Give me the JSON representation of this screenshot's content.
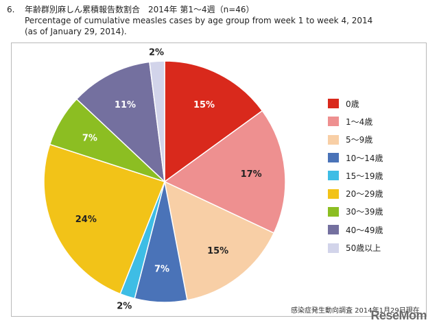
{
  "header": {
    "number": "6.",
    "title_jp": "年齢群別麻しん累積報告数割合　2014年 第1～4週（n=46）",
    "title_en": "Percentage of cumulative measles cases by age group from week 1 to week 4, 2014",
    "date_note": "(as of  January 29, 2014)."
  },
  "source": "感染症発生動向調査 2014年1月29日現在",
  "logo": "ReseMom",
  "chart_data": {
    "type": "pie",
    "title": "Percentage of cumulative measles cases by age group from week 1 to week 4, 2014",
    "n": 46,
    "legend_position": "right",
    "slices": [
      {
        "label": "0歳",
        "value": 15,
        "display": "15%",
        "color": "#d9291c"
      },
      {
        "label": "1～4歳",
        "value": 17,
        "display": "17%",
        "color": "#ee9090"
      },
      {
        "label": "5～9歳",
        "value": 15,
        "display": "15%",
        "color": "#f8cfa6"
      },
      {
        "label": "10～14歳",
        "value": 7,
        "display": "7%",
        "color": "#4a73b8"
      },
      {
        "label": "15～19歳",
        "value": 2,
        "display": "2%",
        "color": "#3ebde5"
      },
      {
        "label": "20～29歳",
        "value": 24,
        "display": "24%",
        "color": "#f2c318"
      },
      {
        "label": "30～39歳",
        "value": 7,
        "display": "7%",
        "color": "#8cbe22"
      },
      {
        "label": "40～49歳",
        "value": 11,
        "display": "11%",
        "color": "#74709f"
      },
      {
        "label": "50歳以上",
        "value": 2,
        "display": "2%",
        "color": "#d2d4ea"
      }
    ]
  }
}
